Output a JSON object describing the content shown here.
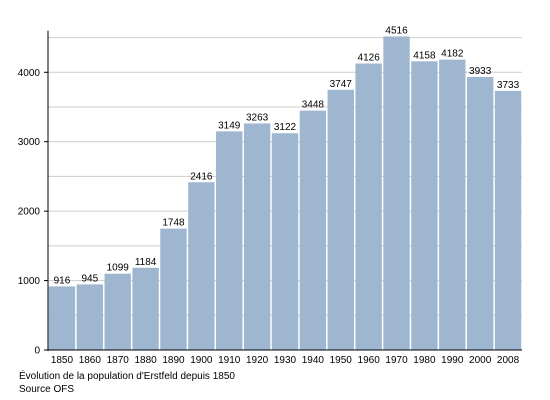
{
  "chart_data": {
    "type": "bar",
    "categories": [
      "1850",
      "1860",
      "1870",
      "1880",
      "1890",
      "1900",
      "1910",
      "1920",
      "1930",
      "1940",
      "1950",
      "1960",
      "1970",
      "1980",
      "1990",
      "2000",
      "2008"
    ],
    "values": [
      916,
      945,
      1099,
      1184,
      1748,
      2416,
      3149,
      3263,
      3122,
      3448,
      3747,
      4126,
      4516,
      4158,
      4182,
      3933,
      3733
    ],
    "data_labels": [
      "916",
      "945",
      "1099",
      "1184",
      "1748",
      "2416",
      "3149",
      "3263",
      "3122",
      "3448",
      "3747",
      "4126",
      "4516",
      "4158",
      "4182",
      "3933",
      "3733"
    ],
    "ylim": [
      0,
      4600
    ],
    "yticks": [
      0,
      1000,
      2000,
      3000,
      4000
    ],
    "grid": true,
    "bar_color": "#9fb6d0",
    "grid_color": "#cccccc"
  },
  "caption": {
    "line1": "Évolution de la population d'Erstfeld depuis 1850",
    "line2": "Source OFS"
  }
}
